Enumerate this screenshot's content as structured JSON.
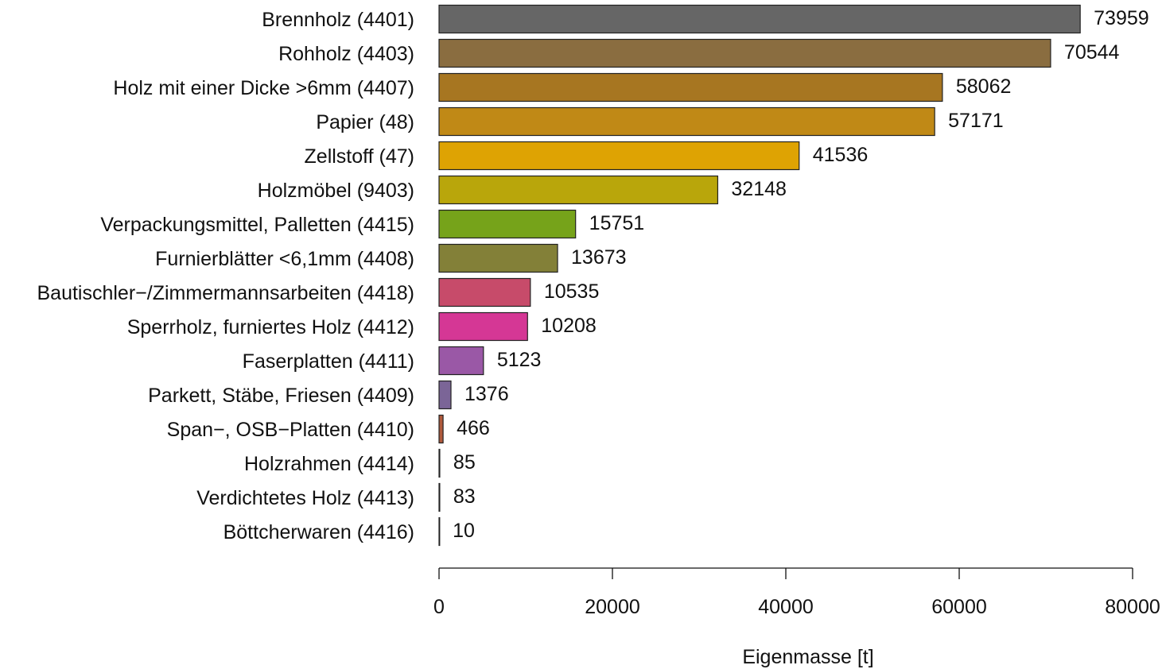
{
  "chart_data": {
    "type": "bar",
    "orientation": "horizontal",
    "categories": [
      "Brennholz (4401)",
      "Rohholz (4403)",
      "Holz mit einer Dicke >6mm (4407)",
      "Papier (48)",
      "Zellstoff (47)",
      "Holzmöbel (9403)",
      "Verpackungsmittel, Palletten (4415)",
      "Furnierblätter <6,1mm (4408)",
      "Bautischler−/Zimmermannsarbeiten (4418)",
      "Sperrholz, furniertes Holz (4412)",
      "Faserplatten (4411)",
      "Parkett, Stäbe, Friesen (4409)",
      "Span−, OSB−Platten (4410)",
      "Holzrahmen (4414)",
      "Verdichtetes Holz (4413)",
      "Böttcherwaren (4416)"
    ],
    "values": [
      73959,
      70544,
      58062,
      57171,
      41536,
      32148,
      15751,
      13673,
      10535,
      10208,
      5123,
      1376,
      466,
      85,
      83,
      10
    ],
    "value_labels": [
      "73959",
      "70544",
      "58062",
      "57171",
      "41536",
      "32148",
      "15751",
      "13673",
      "10535",
      "10208",
      "5123",
      "1376",
      "466",
      "85",
      "83",
      "10"
    ],
    "colors": [
      "#666666",
      "#8a6d40",
      "#a77621",
      "#c08916",
      "#dea303",
      "#b9a60b",
      "#76a31a",
      "#838038",
      "#c74b6a",
      "#d53795",
      "#9a58a6",
      "#7b6597",
      "#b05a3c",
      "#595959",
      "#4a4a4a",
      "#444444"
    ],
    "xlabel": "Eigenmasse [t]",
    "ylabel": "",
    "title": "",
    "xlim": [
      0,
      80000
    ],
    "xticks": [
      0,
      20000,
      40000,
      60000,
      80000
    ],
    "xtick_labels": [
      "0",
      "20000",
      "40000",
      "60000",
      "80000"
    ],
    "grid": false,
    "legend": "none"
  }
}
